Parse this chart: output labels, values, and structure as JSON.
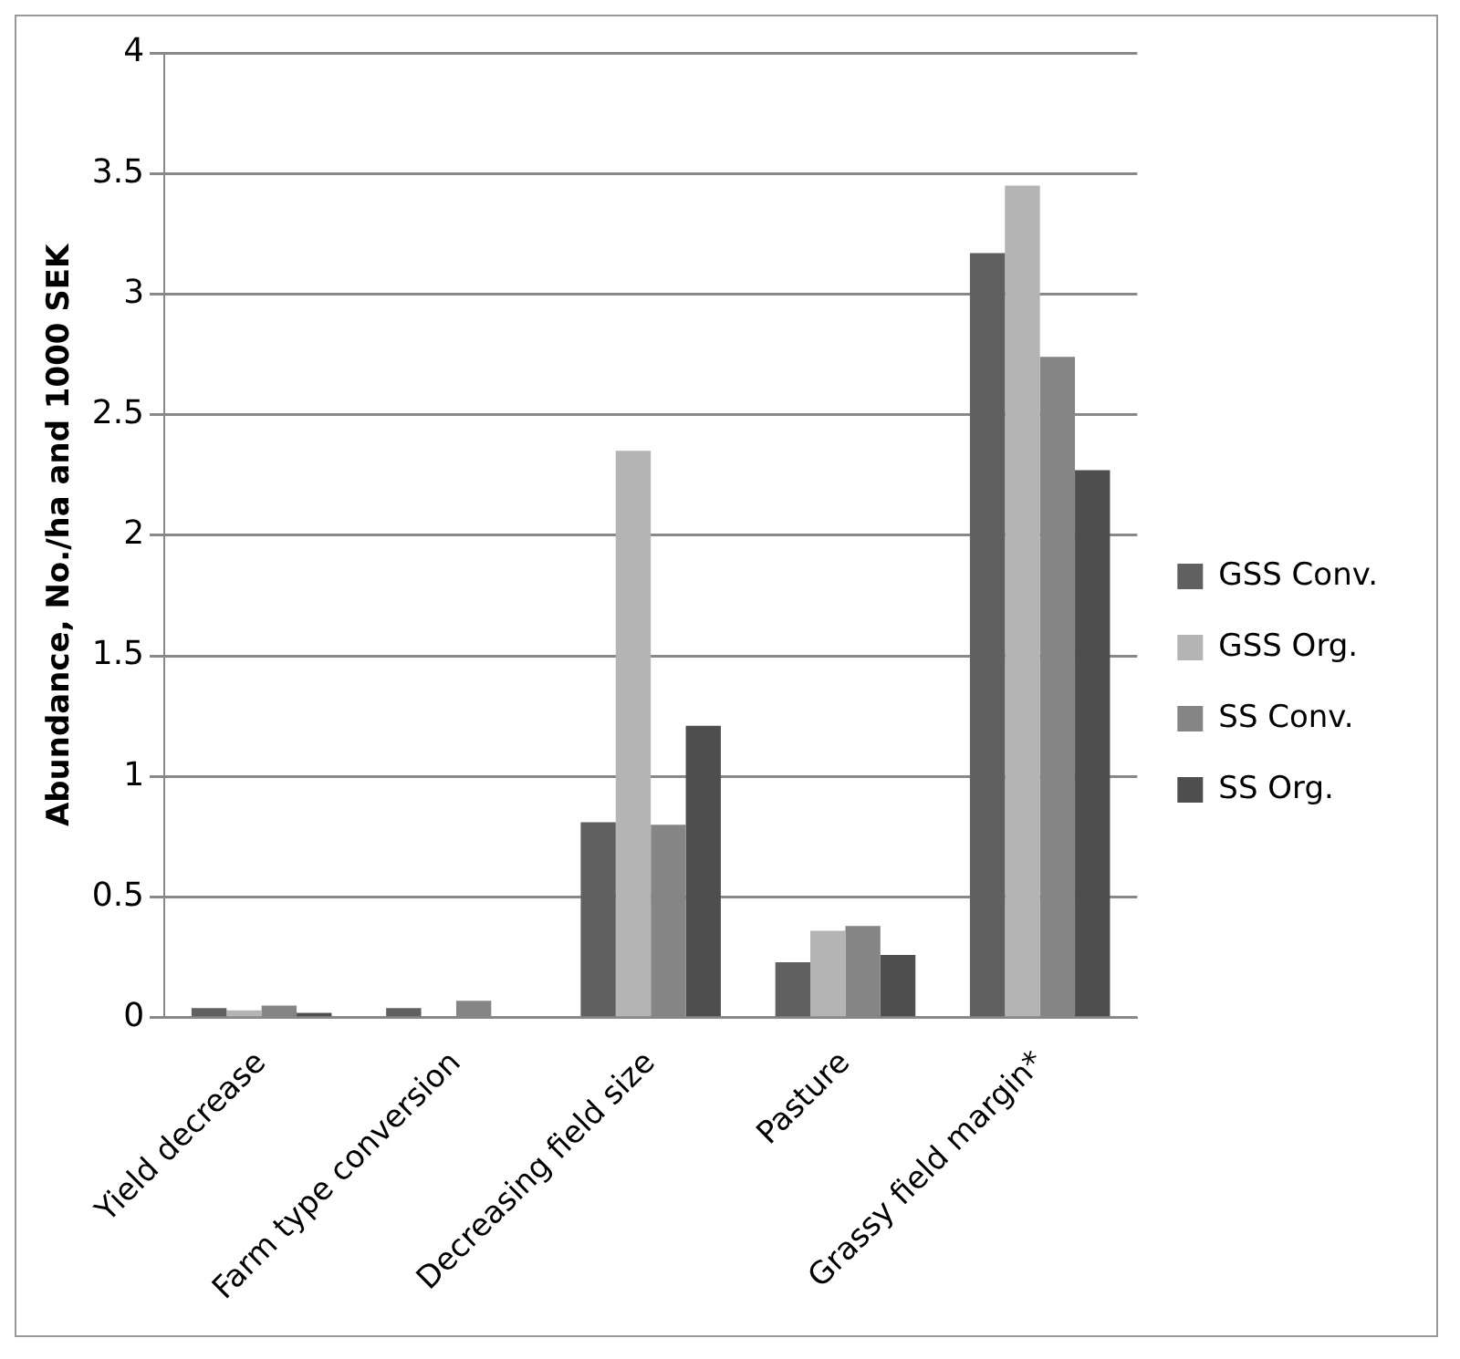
{
  "chart_data": {
    "type": "bar",
    "ylabel": "Abundance, No./ha and 1000 SEK",
    "categories": [
      "Yield decrease",
      "Farm type conversion",
      "Decreasing field size",
      "Pasture",
      "Grassy field margin*"
    ],
    "series": [
      {
        "name": "GSS Conv.",
        "color": "#606060",
        "values": [
          0.04,
          0.04,
          0.81,
          0.23,
          3.17
        ]
      },
      {
        "name": "GSS Org.",
        "color": "#b4b4b4",
        "values": [
          0.03,
          0,
          2.35,
          0.36,
          3.45
        ]
      },
      {
        "name": "SS Conv.",
        "color": "#858585",
        "values": [
          0.05,
          0.07,
          0.8,
          0.38,
          2.74
        ]
      },
      {
        "name": "SS Org.",
        "color": "#4e4e4e",
        "values": [
          0.02,
          0,
          1.21,
          0.26,
          2.27
        ]
      }
    ],
    "ylim": [
      0,
      4
    ],
    "yticks": [
      0,
      0.5,
      1,
      1.5,
      2,
      2.5,
      3,
      3.5,
      4
    ],
    "grid": "y",
    "legend": "right"
  }
}
